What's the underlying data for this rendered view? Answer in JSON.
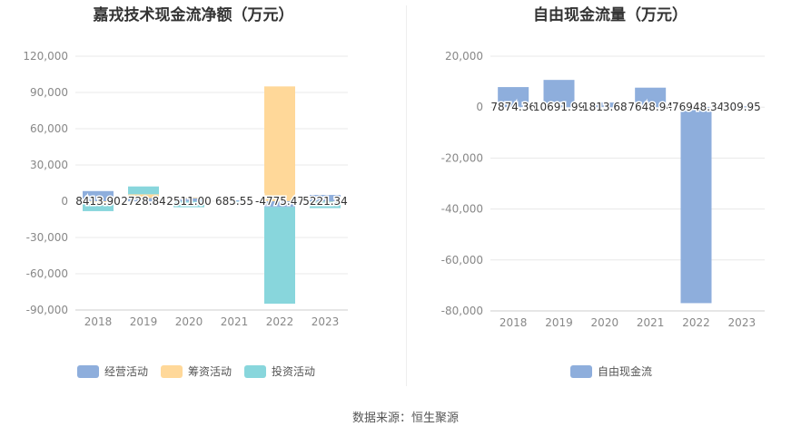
{
  "source": "数据来源：恒生聚源",
  "chart_data": [
    {
      "type": "bar",
      "title": "嘉戎技术现金流净额（万元）",
      "categories": [
        "2018",
        "2019",
        "2020",
        "2021",
        "2022",
        "2023"
      ],
      "ylim": [
        -90000,
        120000
      ],
      "yticks": [
        120000,
        90000,
        60000,
        30000,
        0,
        -30000,
        -60000,
        -90000
      ],
      "ytick_labels": [
        "120,000",
        "90,000",
        "60,000",
        "30,000",
        "0",
        "-30,000",
        "-60,000",
        "-90,000"
      ],
      "grid": true,
      "legend_position": "bottom-left",
      "series": [
        {
          "name": "经营活动",
          "color": "#8eaedc",
          "values": [
            8413.9,
            2728.84,
            2511.0,
            685.55,
            -4775.47,
            5221.34
          ]
        },
        {
          "name": "筹资活动",
          "color": "#ffd899",
          "values": [
            -1200,
            3000,
            600,
            0,
            95000,
            -200
          ]
        },
        {
          "name": "投资活动",
          "color": "#88d6dc",
          "values": [
            -7000,
            6500,
            -5000,
            -400,
            -80000,
            -5500
          ]
        }
      ],
      "data_labels": [
        "8413.90",
        "2728.84",
        "2511.00",
        "685.55",
        "-4775.47",
        "5221.34"
      ]
    },
    {
      "type": "bar",
      "title": "自由现金流量（万元）",
      "categories": [
        "2018",
        "2019",
        "2020",
        "2021",
        "2022",
        "2023"
      ],
      "ylim": [
        -80000,
        20000
      ],
      "yticks": [
        20000,
        0,
        -20000,
        -40000,
        -60000,
        -80000
      ],
      "ytick_labels": [
        "20,000",
        "0",
        "-20,000",
        "-40,000",
        "-60,000",
        "-80,000"
      ],
      "grid": true,
      "legend_position": "bottom-center",
      "series": [
        {
          "name": "自由现金流",
          "color": "#8eaedc",
          "values": [
            7874.36,
            10691.99,
            1813.68,
            7648.94,
            -76948.34,
            309.95
          ]
        }
      ],
      "data_labels": [
        "7874.36",
        "10691.99",
        "1813.68",
        "7648.94",
        "-76948.34",
        "309.95"
      ]
    }
  ]
}
